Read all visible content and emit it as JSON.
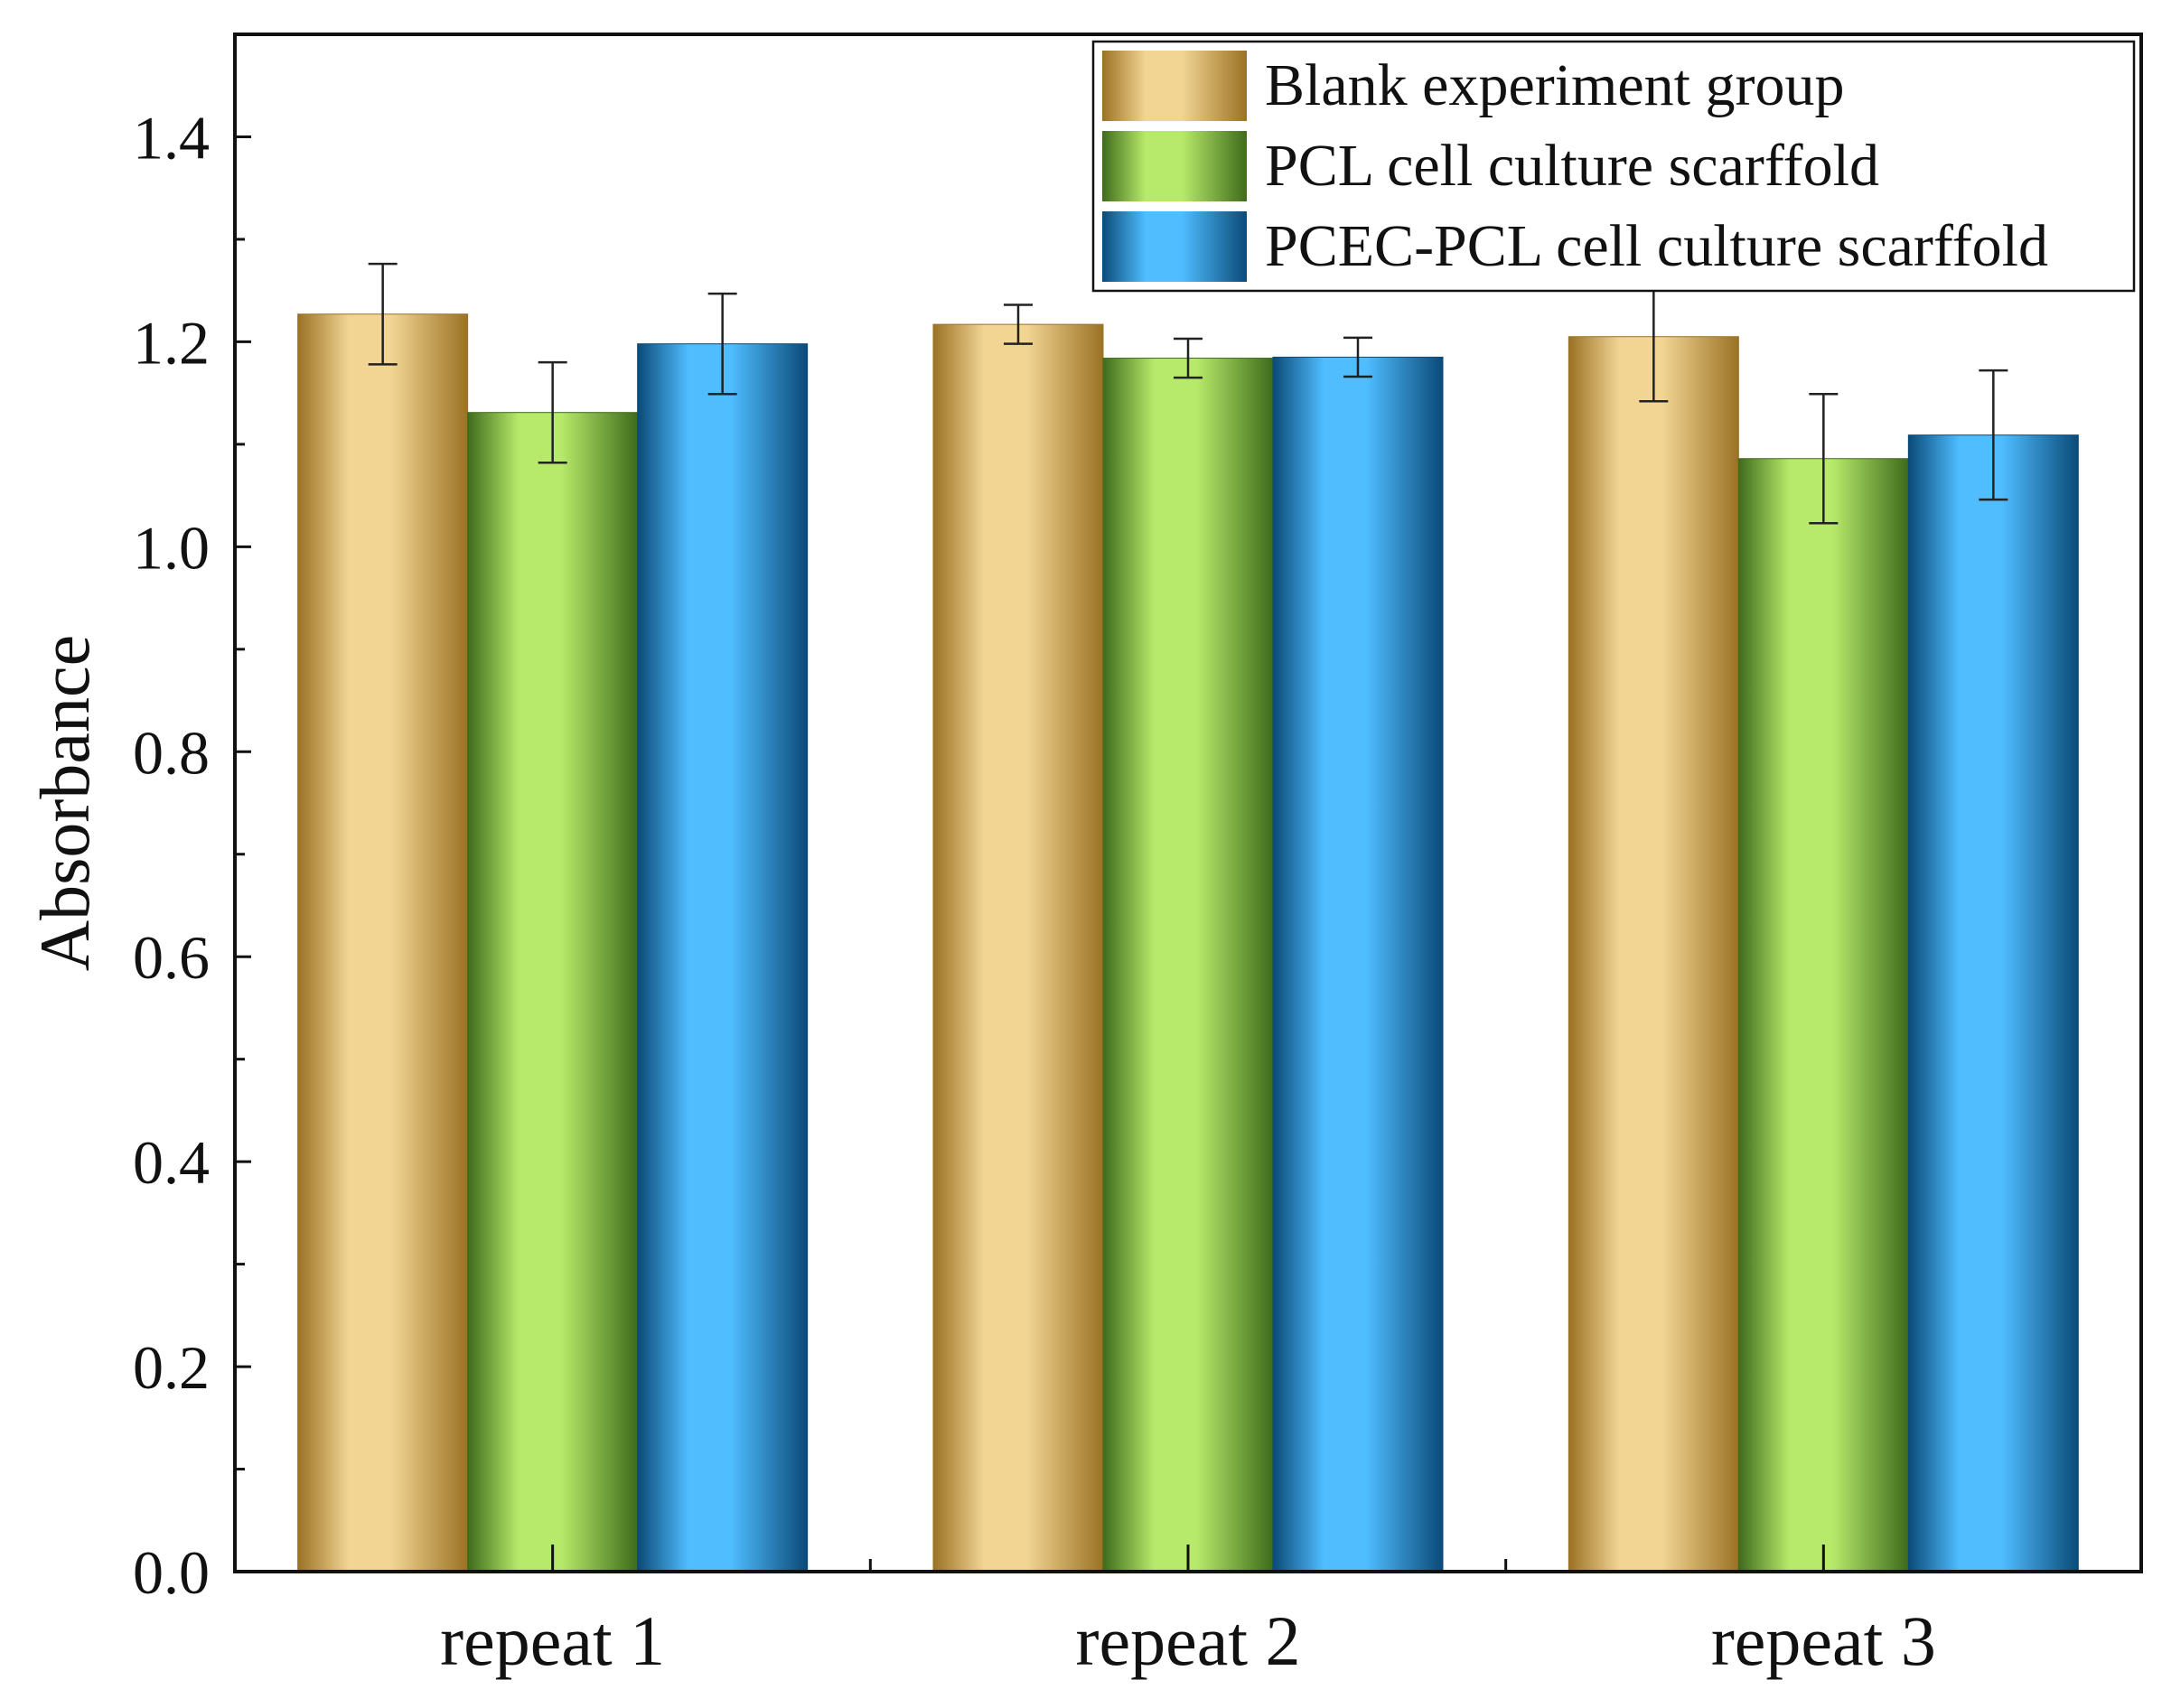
{
  "chart_data": {
    "type": "bar",
    "title": "",
    "xlabel": "",
    "ylabel": "Absorbance",
    "ylim": [
      0,
      1.5
    ],
    "yticks": [
      "0.0",
      "0.2",
      "0.4",
      "0.6",
      "0.8",
      "1.0",
      "1.2",
      "1.4"
    ],
    "ytick_values": [
      0,
      0.2,
      0.4,
      0.6,
      0.8,
      1.0,
      1.2,
      1.4
    ],
    "categories": [
      "repeat 1",
      "repeat 2",
      "repeat 3"
    ],
    "legend_position": "top-right",
    "series": [
      {
        "name": "Blank experiment group",
        "values": [
          1.227,
          1.217,
          1.205
        ],
        "errors": [
          0.049,
          0.019,
          0.063
        ],
        "color_dark": "#9a7224",
        "color_light": "#f2d593"
      },
      {
        "name": "PCL cell culture scarffold",
        "values": [
          1.131,
          1.184,
          1.086
        ],
        "errors": [
          0.049,
          0.019,
          0.063
        ],
        "color_dark": "#3f6b1c",
        "color_light": "#b7ea6a"
      },
      {
        "name": "PCEC-PCL cell culture scarffold",
        "values": [
          1.198,
          1.185,
          1.109
        ],
        "errors": [
          0.049,
          0.019,
          0.063
        ],
        "color_dark": "#0b4a78",
        "color_light": "#4fbdff"
      }
    ]
  }
}
